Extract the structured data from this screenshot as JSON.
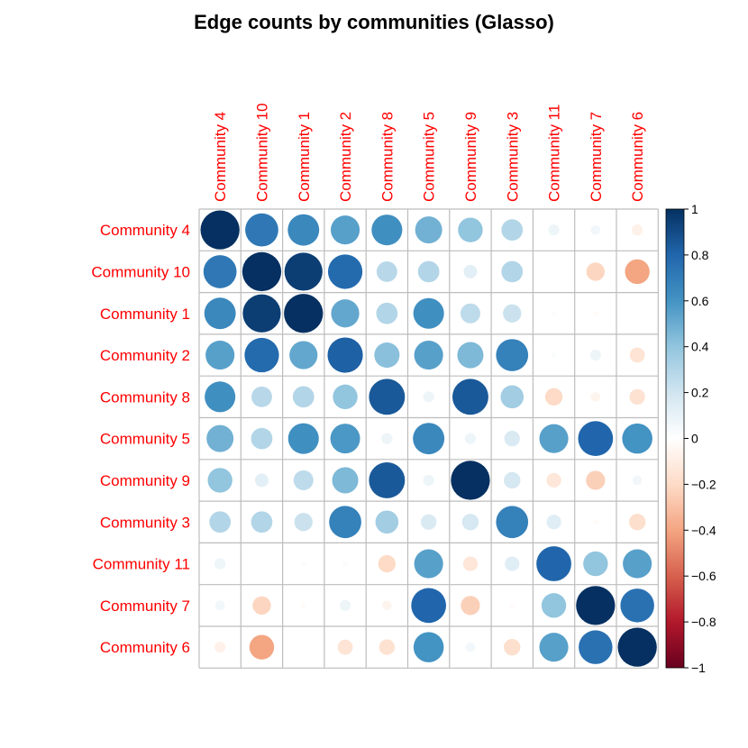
{
  "chart_data": {
    "type": "heatmap",
    "title": "Edge counts by communities (Glasso)",
    "labels": [
      "Community 4",
      "Community 10",
      "Community 1",
      "Community 2",
      "Community 8",
      "Community 5",
      "Community 9",
      "Community 3",
      "Community 11",
      "Community 7",
      "Community 6"
    ],
    "matrix": [
      [
        1.0,
        0.72,
        0.65,
        0.55,
        0.62,
        0.48,
        0.4,
        0.3,
        0.08,
        0.06,
        -0.08
      ],
      [
        0.72,
        1.0,
        0.95,
        0.78,
        0.28,
        0.3,
        0.12,
        0.3,
        0.0,
        -0.22,
        -0.4
      ],
      [
        0.65,
        0.95,
        1.0,
        0.52,
        0.3,
        0.62,
        0.26,
        0.22,
        0.02,
        -0.02,
        0.0
      ],
      [
        0.55,
        0.78,
        0.52,
        0.82,
        0.42,
        0.55,
        0.45,
        0.68,
        0.02,
        0.08,
        -0.15
      ],
      [
        0.62,
        0.28,
        0.3,
        0.4,
        0.85,
        0.08,
        0.85,
        0.35,
        -0.2,
        -0.06,
        -0.16
      ],
      [
        0.48,
        0.3,
        0.62,
        0.58,
        0.08,
        0.65,
        0.08,
        0.16,
        0.55,
        0.8,
        0.6
      ],
      [
        0.4,
        0.12,
        0.26,
        0.45,
        0.85,
        0.08,
        1.0,
        0.18,
        -0.14,
        -0.24,
        0.06
      ],
      [
        0.3,
        0.3,
        0.22,
        0.68,
        0.35,
        0.16,
        0.18,
        0.68,
        0.14,
        -0.02,
        -0.18
      ],
      [
        0.08,
        0.0,
        0.02,
        0.02,
        -0.2,
        0.55,
        -0.14,
        0.14,
        0.8,
        0.4,
        0.55
      ],
      [
        0.06,
        -0.22,
        -0.02,
        0.08,
        -0.06,
        0.8,
        -0.24,
        -0.02,
        0.4,
        1.0,
        0.75
      ],
      [
        -0.08,
        -0.4,
        0.0,
        -0.15,
        -0.16,
        0.6,
        0.06,
        -0.18,
        0.55,
        0.75,
        1.0
      ]
    ],
    "colorbar": {
      "range": [
        -1,
        1
      ],
      "ticks": [
        1,
        0.8,
        0.6,
        0.4,
        0.2,
        0,
        -0.2,
        -0.4,
        -0.6,
        -0.8,
        -1
      ],
      "tick_labels": [
        "1",
        "0.8",
        "0.6",
        "0.4",
        "0.2",
        "0",
        "−0.2",
        "−0.4",
        "−0.6",
        "−0.8",
        "−1"
      ]
    },
    "label_color": "#ff0000",
    "grid_color": "#bdbdbd"
  }
}
